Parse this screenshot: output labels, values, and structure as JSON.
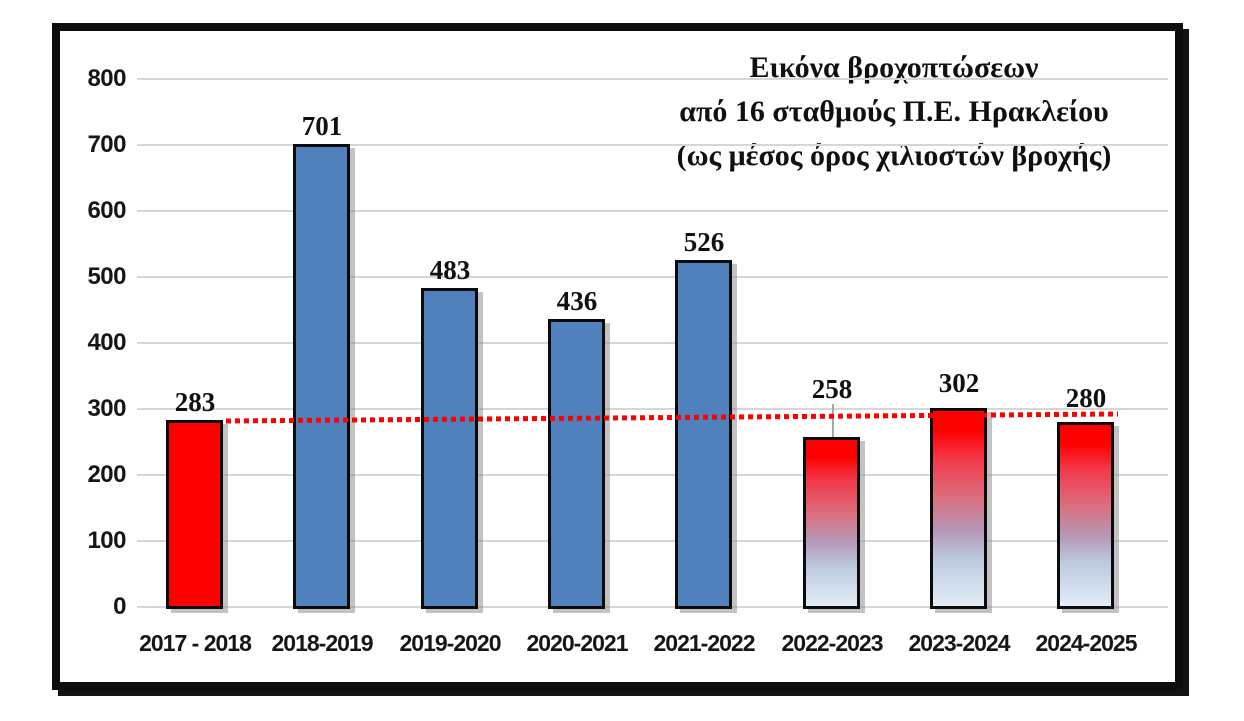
{
  "chart_data": {
    "type": "bar",
    "title_lines": [
      "Εικόνα βροχοπτώσεων",
      "από 16 σταθμούς Π.Ε. Ηρακλείου",
      "(ως μέσος όρος χιλιοστών βροχής)"
    ],
    "categories": [
      "2017 - 2018",
      "2018-2019",
      "2019-2020",
      "2020-2021",
      "2021-2022",
      "2022-2023",
      "2023-2024",
      "2024-2025"
    ],
    "values": [
      283,
      701,
      483,
      436,
      526,
      258,
      302,
      280
    ],
    "bar_styles": [
      "solid-red",
      "solid-blue",
      "solid-blue",
      "solid-blue",
      "solid-blue",
      "gradient",
      "gradient",
      "gradient"
    ],
    "y_ticks": [
      0,
      100,
      200,
      300,
      400,
      500,
      600,
      700,
      800
    ],
    "ylim": [
      0,
      800
    ],
    "xlabel": "",
    "ylabel": "",
    "grid": true,
    "legend": "none",
    "colors": {
      "solid_red": "#fe0000",
      "solid_blue": "#4f81bd",
      "gradient_top": "#fe0000",
      "gradient_bottom": "#e3edf8",
      "bar_border": "#0b0b0b",
      "gridline": "#d6d6d6",
      "reference_line": "#fe0000",
      "text": "#101010",
      "frame_border": "#0d0d0d"
    },
    "reference_line": {
      "style": "dotted",
      "color": "#fe0000",
      "approx_value_start": 283,
      "approx_value_end": 292
    }
  }
}
